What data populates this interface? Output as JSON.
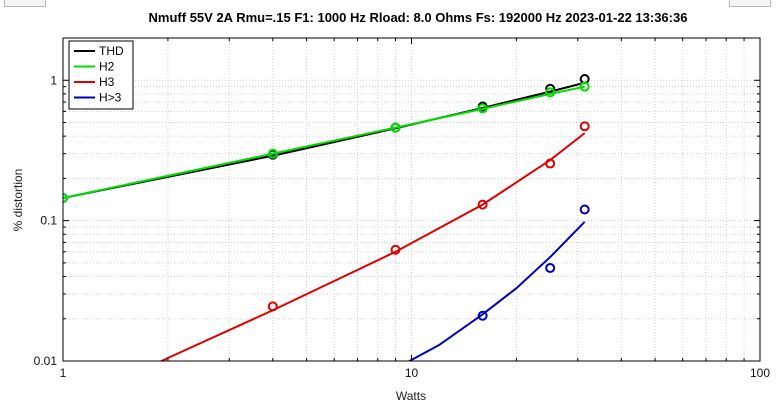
{
  "chart_data": {
    "type": "line",
    "title": "Nmuff 55V 2A Rmu=.15 F1: 1000 Hz   Rload: 8.0 Ohms   Fs: 192000 Hz  2023-01-22 13:36:36",
    "xlabel": "Watts",
    "ylabel": "% distortion",
    "xscale": "log",
    "yscale": "log",
    "xlim": [
      1,
      100
    ],
    "ylim": [
      0.01,
      2
    ],
    "x_ticks": [
      1,
      10,
      100
    ],
    "x_tick_labels": [
      "1",
      "10",
      "100"
    ],
    "y_ticks": [
      0.01,
      0.1,
      1
    ],
    "y_tick_labels": [
      "0.01",
      "0.1",
      "1"
    ],
    "grid": "minor dotted",
    "legend_position": "top-left",
    "series": [
      {
        "name": "THD",
        "color": "#000000",
        "points_x": [
          1,
          4,
          9,
          16,
          25,
          31.4
        ],
        "points_y": [
          0.145,
          0.295,
          0.46,
          0.65,
          0.87,
          1.02
        ],
        "fit_x": [
          1,
          4,
          9,
          16,
          25,
          31.4
        ],
        "fit_y": [
          0.145,
          0.29,
          0.455,
          0.635,
          0.83,
          0.96
        ]
      },
      {
        "name": "H2",
        "color": "#00dd00",
        "points_x": [
          1,
          4,
          9,
          16,
          25,
          31.4
        ],
        "points_y": [
          0.145,
          0.3,
          0.46,
          0.63,
          0.82,
          0.9
        ],
        "fit_x": [
          1,
          4,
          9,
          16,
          25,
          31.4
        ],
        "fit_y": [
          0.145,
          0.3,
          0.46,
          0.625,
          0.8,
          0.9
        ]
      },
      {
        "name": "H3",
        "color": "#dd0000",
        "points_x": [
          4,
          9,
          16,
          25,
          31.4
        ],
        "points_y": [
          0.0245,
          0.062,
          0.13,
          0.255,
          0.47
        ],
        "fit_x": [
          1.5,
          2,
          4,
          9,
          16,
          25,
          31.4
        ],
        "fit_y": [
          0.0075,
          0.0105,
          0.023,
          0.06,
          0.13,
          0.27,
          0.42
        ]
      },
      {
        "name": "H>3",
        "color": "#0000bb",
        "points_x": [
          16,
          25,
          31.4
        ],
        "points_y": [
          0.021,
          0.046,
          0.12
        ],
        "fit_x": [
          9.5,
          12,
          16,
          20,
          25,
          31.4
        ],
        "fit_y": [
          0.0095,
          0.013,
          0.0215,
          0.033,
          0.055,
          0.098
        ]
      }
    ]
  }
}
